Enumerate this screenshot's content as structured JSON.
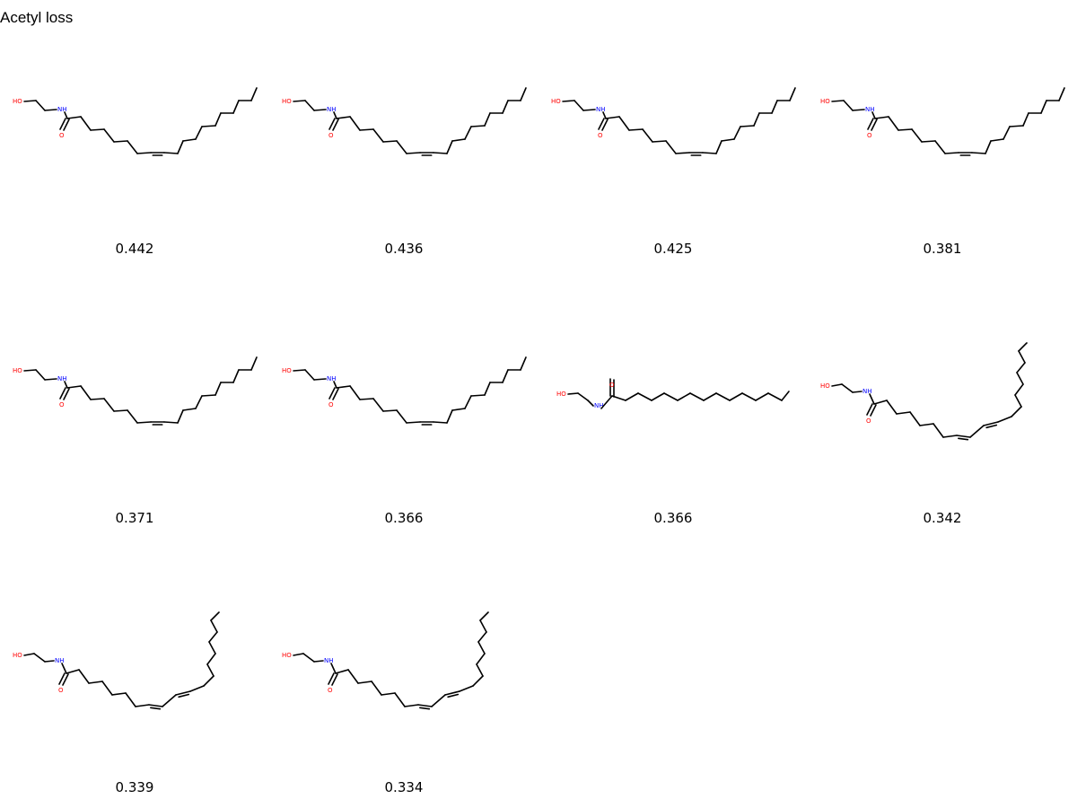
{
  "title": "Acetyl loss",
  "colors": {
    "oxygen": "#ff0000",
    "nitrogen": "#0000ff",
    "bond": "#000000"
  },
  "atom_labels": {
    "hydroxyl": "HO",
    "amide_n": "NH",
    "carbonyl_o": "O"
  },
  "molecules": [
    {
      "score": "0.442",
      "structure": "oleoyl"
    },
    {
      "score": "0.436",
      "structure": "oleoyl"
    },
    {
      "score": "0.425",
      "structure": "oleoyl"
    },
    {
      "score": "0.381",
      "structure": "oleoyl"
    },
    {
      "score": "0.371",
      "structure": "oleoyl"
    },
    {
      "score": "0.366",
      "structure": "oleoyl"
    },
    {
      "score": "0.366",
      "structure": "palmitoyl"
    },
    {
      "score": "0.342",
      "structure": "linoleoyl"
    },
    {
      "score": "0.339",
      "structure": "linoleoyl"
    },
    {
      "score": "0.334",
      "structure": "linoleoyl"
    }
  ]
}
